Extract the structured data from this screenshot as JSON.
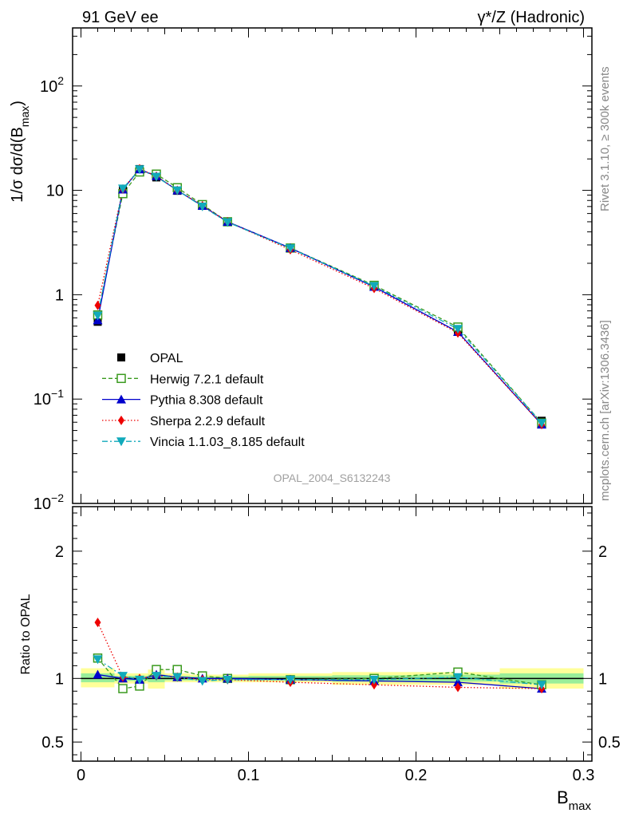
{
  "header": {
    "left": "91 GeV ee",
    "right": "γ*/Z (Hadronic)"
  },
  "side_text": {
    "rivet": "Rivet 3.1.10, ≥ 300k events",
    "mcplots": "mcplots.cern.ch [arXiv:1306.3436]"
  },
  "watermark": "OPAL_2004_S6132243",
  "colors": {
    "opal": "#000000",
    "herwig": "#3a9a1e",
    "pythia": "#0000cc",
    "sherpa": "#ee0000",
    "vincia": "#11aabb",
    "band_outer": "#ffff99",
    "band_inner": "#99ee99"
  },
  "chart_data": [
    {
      "type": "line",
      "title": "",
      "xlabel": "",
      "ylabel_main": "1/σ dσ/d(B",
      "ylabel_sub": "max",
      "ylabel_close": ")",
      "yscale": "log",
      "xlim": [
        -0.005,
        0.305
      ],
      "ylim": [
        0.01,
        360
      ],
      "y_ticks": [
        {
          "value": 0.01,
          "base": "10",
          "exp": "−2"
        },
        {
          "value": 0.1,
          "base": "10",
          "exp": "−1"
        },
        {
          "value": 1,
          "base": "1",
          "exp": ""
        },
        {
          "value": 10,
          "base": "10",
          "exp": ""
        },
        {
          "value": 100,
          "base": "10",
          "exp": "2"
        }
      ],
      "series": [
        {
          "key": "opal",
          "name": "OPAL",
          "marker": "square-filled",
          "line": "none",
          "x": [
            0.01,
            0.025,
            0.035,
            0.045,
            0.0575,
            0.0725,
            0.0875,
            0.125,
            0.175,
            0.225,
            0.275
          ],
          "y": [
            0.55,
            10.2,
            16.0,
            13.3,
            9.9,
            7.1,
            5.0,
            2.8,
            1.22,
            0.46,
            0.062
          ]
        },
        {
          "key": "herwig",
          "name": "Herwig 7.2.1 default",
          "marker": "square-open",
          "line": "dashed",
          "x": [
            0.01,
            0.025,
            0.035,
            0.045,
            0.0575,
            0.0725,
            0.0875,
            0.125,
            0.175,
            0.225,
            0.275
          ],
          "y": [
            0.64,
            9.3,
            15.0,
            14.3,
            10.6,
            7.3,
            5.0,
            2.8,
            1.23,
            0.49,
            0.059
          ]
        },
        {
          "key": "pythia",
          "name": "Pythia 8.308 default",
          "marker": "triangle-up",
          "line": "solid",
          "x": [
            0.01,
            0.025,
            0.035,
            0.045,
            0.0575,
            0.0725,
            0.0875,
            0.125,
            0.175,
            0.225,
            0.275
          ],
          "y": [
            0.57,
            10.2,
            15.9,
            13.7,
            10.0,
            7.1,
            5.0,
            2.8,
            1.19,
            0.44,
            0.057
          ]
        },
        {
          "key": "sherpa",
          "name": "Sherpa 2.2.9 default",
          "marker": "diamond",
          "line": "dotted",
          "x": [
            0.01,
            0.025,
            0.035,
            0.045,
            0.0575,
            0.0725,
            0.0875,
            0.125,
            0.175,
            0.225,
            0.275
          ],
          "y": [
            0.79,
            10.3,
            16.1,
            13.6,
            10.0,
            7.1,
            5.0,
            2.7,
            1.15,
            0.43,
            0.057
          ]
        },
        {
          "key": "vincia",
          "name": "Vincia 1.1.03_8.185 default",
          "marker": "triangle-down",
          "line": "dashdot",
          "x": [
            0.01,
            0.025,
            0.035,
            0.045,
            0.0575,
            0.0725,
            0.0875,
            0.125,
            0.175,
            0.225,
            0.275
          ],
          "y": [
            0.63,
            10.4,
            15.9,
            13.5,
            10.0,
            7.0,
            4.95,
            2.78,
            1.21,
            0.47,
            0.059
          ]
        }
      ]
    },
    {
      "type": "line",
      "title": "",
      "xlabel_main": "B",
      "xlabel_sub": "max",
      "ylabel": "Ratio to OPAL",
      "xlim": [
        -0.005,
        0.305
      ],
      "ylim": [
        0.35,
        2.35
      ],
      "x_ticks": [
        {
          "value": 0,
          "label": "0"
        },
        {
          "value": 0.1,
          "label": "0.1"
        },
        {
          "value": 0.2,
          "label": "0.2"
        },
        {
          "value": 0.3,
          "label": "0.3"
        }
      ],
      "y_ticks": [
        {
          "value": 0.5,
          "label": "0.5"
        },
        {
          "value": 1,
          "label": "1"
        },
        {
          "value": 2,
          "label": "2"
        }
      ],
      "bands": [
        {
          "x0": 0.0,
          "x1": 0.02,
          "outer": [
            0.93,
            1.08
          ],
          "inner": [
            0.97,
            1.04
          ]
        },
        {
          "x0": 0.02,
          "x1": 0.04,
          "outer": [
            0.96,
            1.04
          ],
          "inner": [
            0.98,
            1.02
          ]
        },
        {
          "x0": 0.04,
          "x1": 0.05,
          "outer": [
            0.92,
            1.07
          ],
          "inner": [
            0.97,
            1.03
          ]
        },
        {
          "x0": 0.05,
          "x1": 0.065,
          "outer": [
            0.97,
            1.04
          ],
          "inner": [
            0.985,
            1.02
          ]
        },
        {
          "x0": 0.065,
          "x1": 0.08,
          "outer": [
            0.97,
            1.03
          ],
          "inner": [
            0.985,
            1.015
          ]
        },
        {
          "x0": 0.08,
          "x1": 0.1,
          "outer": [
            0.97,
            1.03
          ],
          "inner": [
            0.985,
            1.015
          ]
        },
        {
          "x0": 0.1,
          "x1": 0.15,
          "outer": [
            0.97,
            1.04
          ],
          "inner": [
            0.985,
            1.02
          ]
        },
        {
          "x0": 0.15,
          "x1": 0.2,
          "outer": [
            0.95,
            1.05
          ],
          "inner": [
            0.975,
            1.025
          ]
        },
        {
          "x0": 0.2,
          "x1": 0.25,
          "outer": [
            0.95,
            1.05
          ],
          "inner": [
            0.975,
            1.03
          ]
        },
        {
          "x0": 0.25,
          "x1": 0.3,
          "outer": [
            0.92,
            1.08
          ],
          "inner": [
            0.96,
            1.04
          ]
        }
      ],
      "series": [
        {
          "key": "herwig",
          "name": "Herwig 7.2.1 default",
          "marker": "square-open",
          "line": "dashed",
          "x": [
            0.01,
            0.025,
            0.035,
            0.045,
            0.0575,
            0.0725,
            0.0875,
            0.125,
            0.175,
            0.225,
            0.275
          ],
          "y": [
            1.16,
            0.92,
            0.94,
            1.07,
            1.07,
            1.02,
            1.0,
            0.99,
            1.0,
            1.05,
            0.95
          ]
        },
        {
          "key": "pythia",
          "name": "Pythia 8.308 default",
          "marker": "triangle-up",
          "line": "solid",
          "x": [
            0.01,
            0.025,
            0.035,
            0.045,
            0.0575,
            0.0725,
            0.0875,
            0.125,
            0.175,
            0.225,
            0.275
          ],
          "y": [
            1.03,
            1.0,
            0.99,
            1.03,
            1.01,
            1.0,
            1.0,
            0.99,
            0.98,
            0.97,
            0.92
          ]
        },
        {
          "key": "sherpa",
          "name": "Sherpa 2.2.9 default",
          "marker": "diamond",
          "line": "dotted",
          "x": [
            0.01,
            0.025,
            0.035,
            0.045,
            0.0575,
            0.0725,
            0.0875,
            0.125,
            0.175,
            0.225,
            0.275
          ],
          "y": [
            1.44,
            1.01,
            1.0,
            1.02,
            1.01,
            0.99,
            0.99,
            0.97,
            0.95,
            0.93,
            0.92
          ]
        },
        {
          "key": "vincia",
          "name": "Vincia 1.1.03_8.185 default",
          "marker": "triangle-down",
          "line": "dashdot",
          "x": [
            0.01,
            0.025,
            0.035,
            0.045,
            0.0575,
            0.0725,
            0.0875,
            0.125,
            0.175,
            0.225,
            0.275
          ],
          "y": [
            1.15,
            1.02,
            0.99,
            1.02,
            1.01,
            0.98,
            0.99,
            0.99,
            0.99,
            1.01,
            0.95
          ]
        }
      ]
    }
  ]
}
